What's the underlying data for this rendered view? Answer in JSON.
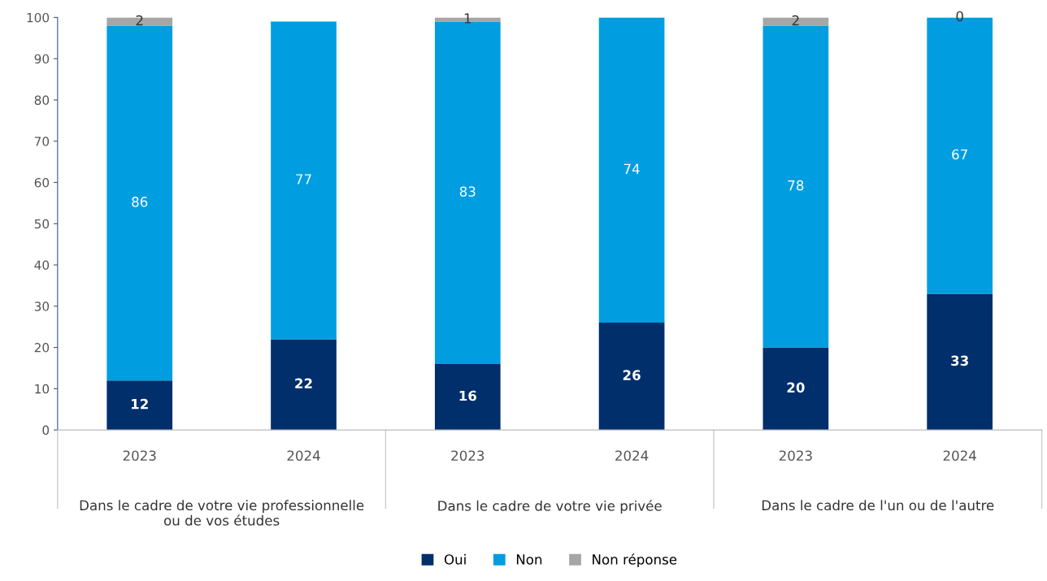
{
  "chart_data": {
    "type": "bar",
    "stacked": true,
    "categories": [
      "2023",
      "2024",
      "2023",
      "2024",
      "2023",
      "2024"
    ],
    "annotations": [
      "Dans le cadre de votre vie professionnelle ou de vos études",
      "Dans le cadre de votre vie privée",
      "Dans le cadre de l'un ou de l'autre"
    ],
    "series": [
      {
        "name": "Oui",
        "color": "#002f6c",
        "values": [
          12,
          22,
          16,
          26,
          20,
          33
        ],
        "value_labels": [
          "12",
          "22",
          "16",
          "26",
          "20",
          "33"
        ]
      },
      {
        "name": "Non",
        "color": "#009ee0",
        "values": [
          86,
          77,
          83,
          74,
          78,
          67
        ],
        "value_labels": [
          "86",
          "77",
          "83",
          "74",
          "78",
          "67"
        ]
      },
      {
        "name": "Non réponse",
        "color": "#a6a6a6",
        "values": [
          2,
          0,
          1,
          0,
          2,
          0
        ],
        "value_labels": [
          "2",
          null,
          "1",
          null,
          "2",
          "0"
        ]
      }
    ],
    "ylim": [
      0,
      100
    ],
    "yticks": [
      0,
      10,
      20,
      30,
      40,
      50,
      60,
      70,
      80,
      90,
      100
    ],
    "grid": false,
    "legend": "bottom"
  }
}
